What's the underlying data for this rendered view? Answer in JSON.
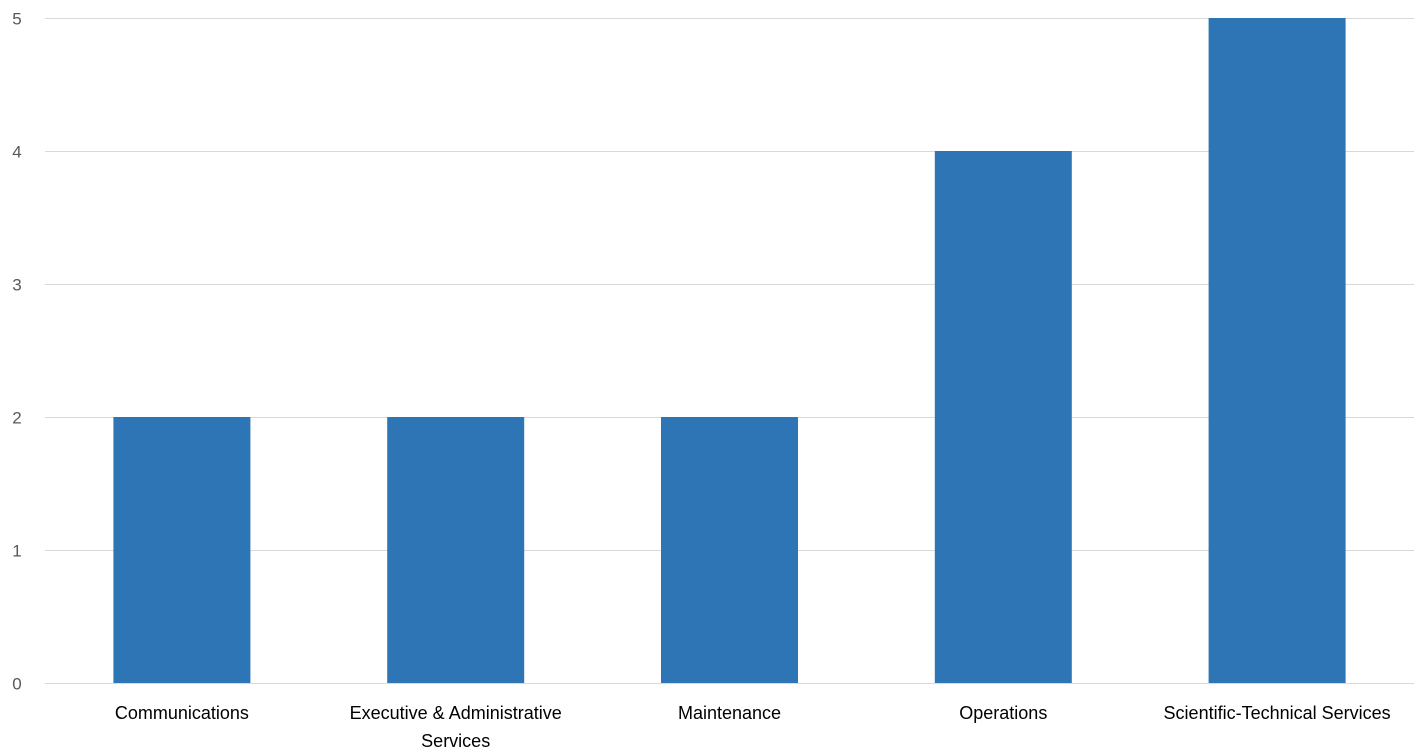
{
  "chart_data": {
    "type": "bar",
    "title": "",
    "xlabel": "",
    "ylabel": "",
    "categories": [
      [
        "Communications"
      ],
      [
        "Executive & Administrative",
        "Services"
      ],
      [
        "Maintenance"
      ],
      [
        "Operations"
      ],
      [
        "Scientific-Technical Services"
      ]
    ],
    "values": [
      2,
      2,
      2,
      4,
      5
    ],
    "ylim": [
      0,
      5
    ],
    "yticks": [
      0,
      1,
      2,
      3,
      4,
      5
    ],
    "grid": true,
    "legend": "none",
    "bar_color": "#2e75b6",
    "grid_color": "#d9d9d9"
  }
}
